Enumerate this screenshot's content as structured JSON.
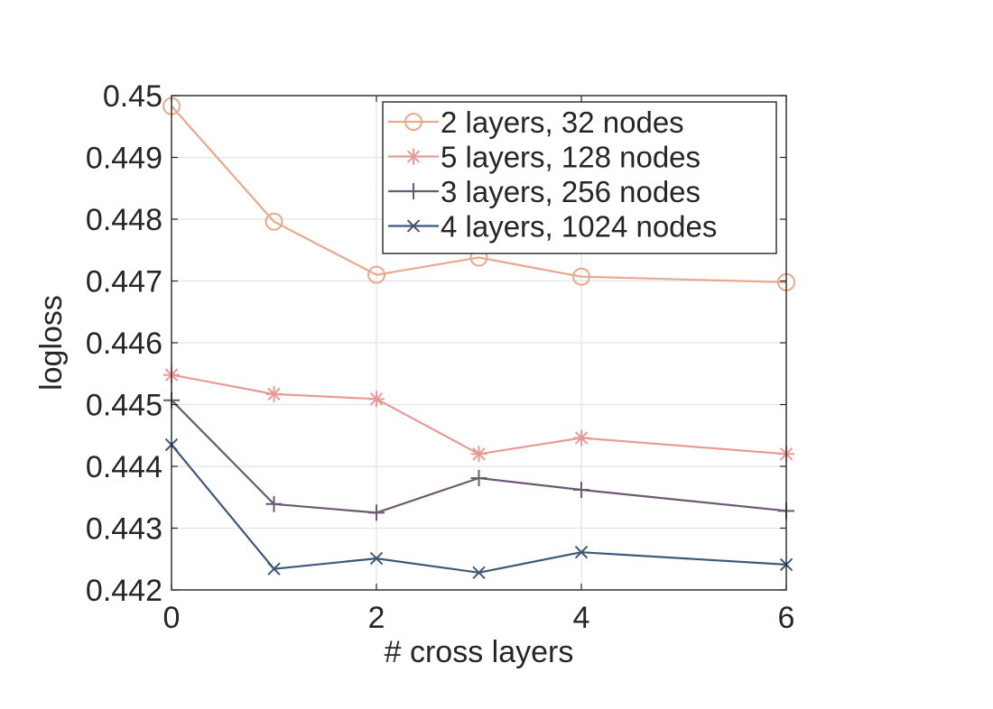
{
  "chart_data": {
    "type": "line",
    "xlabel": "# cross layers",
    "ylabel": "logloss",
    "xlim": [
      0,
      6
    ],
    "ylim": [
      0.442,
      0.45
    ],
    "xticks": [
      0,
      2,
      4,
      6
    ],
    "xtick_labels": [
      "0",
      "2",
      "4",
      "6"
    ],
    "yticks": [
      0.442,
      0.443,
      0.444,
      0.445,
      0.446,
      0.447,
      0.448,
      0.449,
      0.45
    ],
    "ytick_labels": [
      "0.442",
      "0.443",
      "0.444",
      "0.445",
      "0.446",
      "0.447",
      "0.448",
      "0.449",
      "0.45"
    ],
    "grid": true,
    "legend_position": "top-right",
    "series": [
      {
        "name": "2 layers, 32 nodes",
        "marker": "circle",
        "color": "#E8A98E",
        "x": [
          0,
          1,
          2,
          3,
          4,
          6
        ],
        "values": [
          0.44983,
          0.44796,
          0.4471,
          0.44738,
          0.44707,
          0.44698
        ]
      },
      {
        "name": "5 layers, 128 nodes",
        "marker": "asterisk",
        "color": "#E99A95",
        "x": [
          0,
          1,
          2,
          3,
          4,
          6
        ],
        "values": [
          0.44548,
          0.44517,
          0.44509,
          0.4442,
          0.44446,
          0.4442
        ]
      },
      {
        "name": "3 layers, 256 nodes",
        "marker": "plus",
        "color": "#6E5873",
        "x": [
          0,
          1,
          2,
          3,
          4,
          6
        ],
        "values": [
          0.44507,
          0.44339,
          0.44325,
          0.44381,
          0.44362,
          0.44328
        ]
      },
      {
        "name": "4 layers, 1024 nodes",
        "marker": "x",
        "color": "#3E5878",
        "x": [
          0,
          1,
          2,
          3,
          4,
          6
        ],
        "values": [
          0.44435,
          0.44234,
          0.44251,
          0.44228,
          0.44261,
          0.44241
        ]
      }
    ]
  }
}
